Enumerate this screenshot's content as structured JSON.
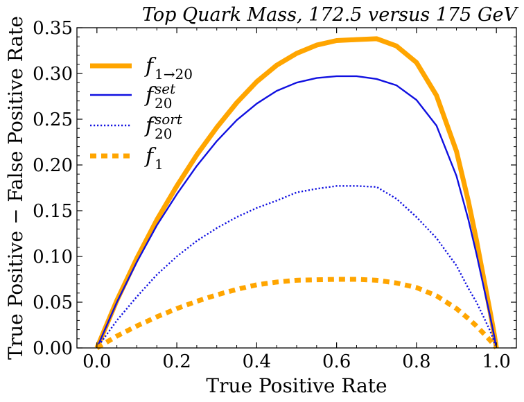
{
  "chart_data": {
    "type": "line",
    "title": "Top Quark Mass, 172.5 versus 175 GeV",
    "xlabel": "True Positive Rate",
    "ylabel": "True Positive − False Positive Rate",
    "xlim": [
      -0.05,
      1.05
    ],
    "ylim": [
      0,
      0.35
    ],
    "xticks": [
      0.0,
      0.2,
      0.4,
      0.6,
      0.8,
      1.0
    ],
    "xtick_labels": [
      "0.0",
      "0.2",
      "0.4",
      "0.6",
      "0.8",
      "1.0"
    ],
    "yticks": [
      0.0,
      0.05,
      0.1,
      0.15,
      0.2,
      0.25,
      0.3,
      0.35
    ],
    "ytick_labels": [
      "0.00",
      "0.05",
      "0.10",
      "0.15",
      "0.20",
      "0.25",
      "0.30",
      "0.35"
    ],
    "grid": false,
    "legend_position": "top-left",
    "series": [
      {
        "name": "f",
        "sub": "1→20",
        "sup": "",
        "color": "#FFA500",
        "style": "solid",
        "width": "thick",
        "x": [
          0.0,
          0.05,
          0.1,
          0.15,
          0.2,
          0.25,
          0.3,
          0.35,
          0.4,
          0.45,
          0.5,
          0.55,
          0.6,
          0.65,
          0.7,
          0.75,
          0.8,
          0.85,
          0.9,
          0.93,
          0.95,
          0.97,
          0.985,
          0.995,
          1.0
        ],
        "y": [
          0.0,
          0.052,
          0.098,
          0.14,
          0.177,
          0.211,
          0.241,
          0.268,
          0.291,
          0.309,
          0.322,
          0.331,
          0.336,
          0.337,
          0.338,
          0.33,
          0.312,
          0.276,
          0.215,
          0.16,
          0.118,
          0.072,
          0.038,
          0.014,
          0.0
        ]
      },
      {
        "name": "f",
        "sub": "20",
        "sup": "set",
        "color": "#1010E0",
        "style": "solid",
        "width": "medium",
        "x": [
          0.0,
          0.05,
          0.1,
          0.15,
          0.2,
          0.25,
          0.3,
          0.35,
          0.4,
          0.45,
          0.5,
          0.55,
          0.6,
          0.65,
          0.7,
          0.75,
          0.8,
          0.85,
          0.9,
          0.93,
          0.95,
          0.97,
          0.985,
          0.995,
          1.0
        ],
        "y": [
          0.0,
          0.05,
          0.094,
          0.134,
          0.168,
          0.199,
          0.226,
          0.249,
          0.267,
          0.281,
          0.29,
          0.295,
          0.297,
          0.297,
          0.294,
          0.287,
          0.271,
          0.243,
          0.188,
          0.14,
          0.103,
          0.063,
          0.033,
          0.012,
          0.0
        ]
      },
      {
        "name": "f",
        "sub": "20",
        "sup": "sort",
        "color": "#1010E0",
        "style": "dotted",
        "width": "medium",
        "x": [
          0.0,
          0.05,
          0.1,
          0.15,
          0.2,
          0.25,
          0.3,
          0.35,
          0.4,
          0.45,
          0.5,
          0.55,
          0.6,
          0.65,
          0.7,
          0.75,
          0.8,
          0.85,
          0.9,
          0.93,
          0.95,
          0.97,
          0.985,
          0.995,
          1.0
        ],
        "y": [
          0.0,
          0.03,
          0.056,
          0.08,
          0.1,
          0.117,
          0.131,
          0.143,
          0.153,
          0.161,
          0.17,
          0.174,
          0.177,
          0.177,
          0.176,
          0.163,
          0.143,
          0.12,
          0.09,
          0.065,
          0.05,
          0.032,
          0.018,
          0.006,
          0.0
        ]
      },
      {
        "name": "f",
        "sub": "1",
        "sup": "",
        "color": "#FFA500",
        "style": "dashed",
        "width": "thick",
        "x": [
          0.0,
          0.05,
          0.1,
          0.15,
          0.2,
          0.25,
          0.3,
          0.35,
          0.4,
          0.45,
          0.5,
          0.55,
          0.6,
          0.65,
          0.7,
          0.75,
          0.8,
          0.85,
          0.9,
          0.93,
          0.95,
          0.97,
          0.985,
          0.995,
          1.0
        ],
        "y": [
          0.0,
          0.013,
          0.024,
          0.034,
          0.043,
          0.051,
          0.058,
          0.064,
          0.069,
          0.072,
          0.074,
          0.0745,
          0.075,
          0.075,
          0.074,
          0.071,
          0.066,
          0.057,
          0.043,
          0.032,
          0.024,
          0.015,
          0.008,
          0.003,
          0.0
        ]
      }
    ]
  }
}
